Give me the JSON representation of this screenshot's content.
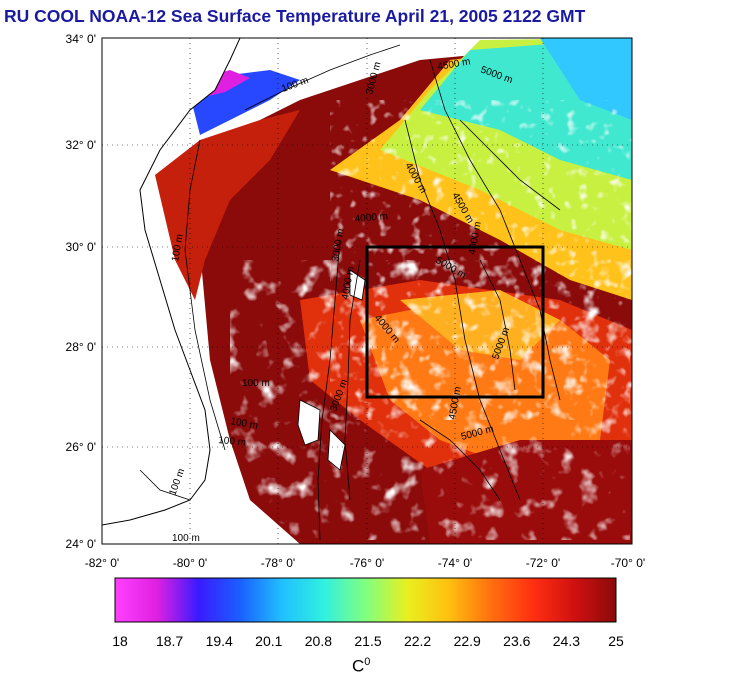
{
  "title": "RU COOL  NOAA-12 Sea Surface Temperature April 21, 2005 2122 GMT",
  "map": {
    "lat_range": [
      24,
      34
    ],
    "lon_range": [
      -82,
      -70
    ],
    "lat_ticks": [
      "34° 0'",
      "32° 0'",
      "30° 0'",
      "28° 0'",
      "26° 0'",
      "24° 0'"
    ],
    "lon_ticks": [
      "-82° 0'",
      "-80° 0'",
      "-78° 0'",
      "-76° 0'",
      "-74° 0'",
      "-72° 0'",
      "-70° 0'"
    ],
    "box": {
      "lon_min": -76,
      "lon_max": -72,
      "lat_min": 27,
      "lat_max": 30
    },
    "colors": {
      "land": "#ffffff",
      "cloud": "#ffffff",
      "warm": "#8b0a0a",
      "hot": "#c41a0a",
      "orange": "#ff6a10",
      "yellow": "#ffd020",
      "cyan": "#30e0e8",
      "blue": "#1a5aff",
      "magenta": "#e020e0"
    },
    "contour_labels": [
      {
        "text": "100 m"
      },
      {
        "text": "3000 m"
      },
      {
        "text": "4500 m"
      },
      {
        "text": "5000 m"
      },
      {
        "text": "4000 m"
      },
      {
        "text": "4000 m"
      },
      {
        "text": "4500 m"
      },
      {
        "text": "4000 m"
      },
      {
        "text": "5000 m"
      },
      {
        "text": "4000 m"
      },
      {
        "text": "3000 m"
      },
      {
        "text": "5000 m"
      },
      {
        "text": "4500 m"
      },
      {
        "text": "5000 m"
      },
      {
        "text": "100 m"
      },
      {
        "text": "100 m"
      },
      {
        "text": "100 m"
      },
      {
        "text": "100 m"
      },
      {
        "text": "100 m"
      },
      {
        "text": "100 m"
      },
      {
        "text": "3000 m"
      },
      {
        "text": "4000 m"
      }
    ]
  },
  "colorbar": {
    "ticks": [
      "18",
      "18.7",
      "19.4",
      "20.1",
      "20.8",
      "21.5",
      "22.2",
      "22.9",
      "23.6",
      "24.3",
      "25"
    ],
    "unit": "C",
    "unit_sup": "0",
    "stops": [
      "#ff40ff",
      "#e020e0",
      "#3a1aff",
      "#1a60ff",
      "#20c0ff",
      "#30f0e0",
      "#80ff80",
      "#e8f020",
      "#ffc010",
      "#ff7010",
      "#ff3010",
      "#d01010",
      "#8b0a0a"
    ]
  }
}
